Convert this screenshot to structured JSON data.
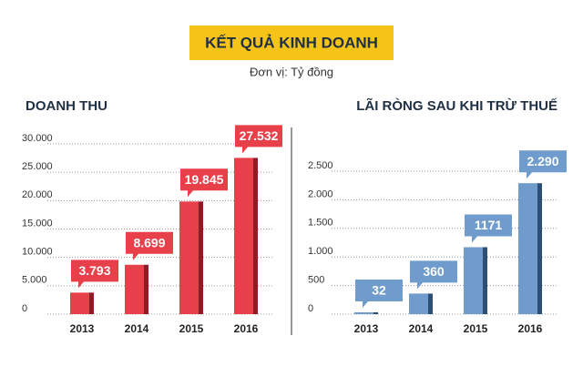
{
  "title": "KẾT QUẢ KINH DOANH",
  "subtitle": "Đơn vị: Tỷ đồng",
  "chart_data": [
    {
      "type": "bar",
      "title": "DOANH THU",
      "categories": [
        "2013",
        "2014",
        "2015",
        "2016"
      ],
      "values": [
        3793,
        8699,
        19845,
        27532
      ],
      "value_labels": [
        "3.793",
        "8.699",
        "19.845",
        "27.532"
      ],
      "color": "#e8404a",
      "shade_color": "#8e1b25",
      "ylim": [
        0,
        30000
      ],
      "yticks": [
        0,
        {
          "value": 5000,
          "label": "5.000"
        },
        {
          "value": 10000,
          "label": "10.000"
        },
        {
          "value": 15000,
          "label": "15.000"
        },
        {
          "value": 20000,
          "label": "20.000"
        },
        {
          "value": 25000,
          "label": "25.000"
        },
        {
          "value": 30000,
          "label": "30.000"
        }
      ],
      "grid": true
    },
    {
      "type": "bar",
      "title": "LÃI RÒNG SAU KHI TRỪ THUẾ",
      "categories": [
        "2013",
        "2014",
        "2015",
        "2016"
      ],
      "values": [
        32,
        360,
        1171,
        2290
      ],
      "value_labels": [
        "32",
        "360",
        "1171",
        "2.290"
      ],
      "color": "#6f9ccc",
      "shade_color": "#2f4e74",
      "ylim": [
        0,
        2500
      ],
      "yticks": [
        0,
        500,
        {
          "value": 1000,
          "label": "1.000"
        },
        {
          "value": 1500,
          "label": "1.500"
        },
        {
          "value": 2000,
          "label": "2.000"
        },
        {
          "value": 2500,
          "label": "2.500"
        }
      ],
      "grid": true
    }
  ]
}
